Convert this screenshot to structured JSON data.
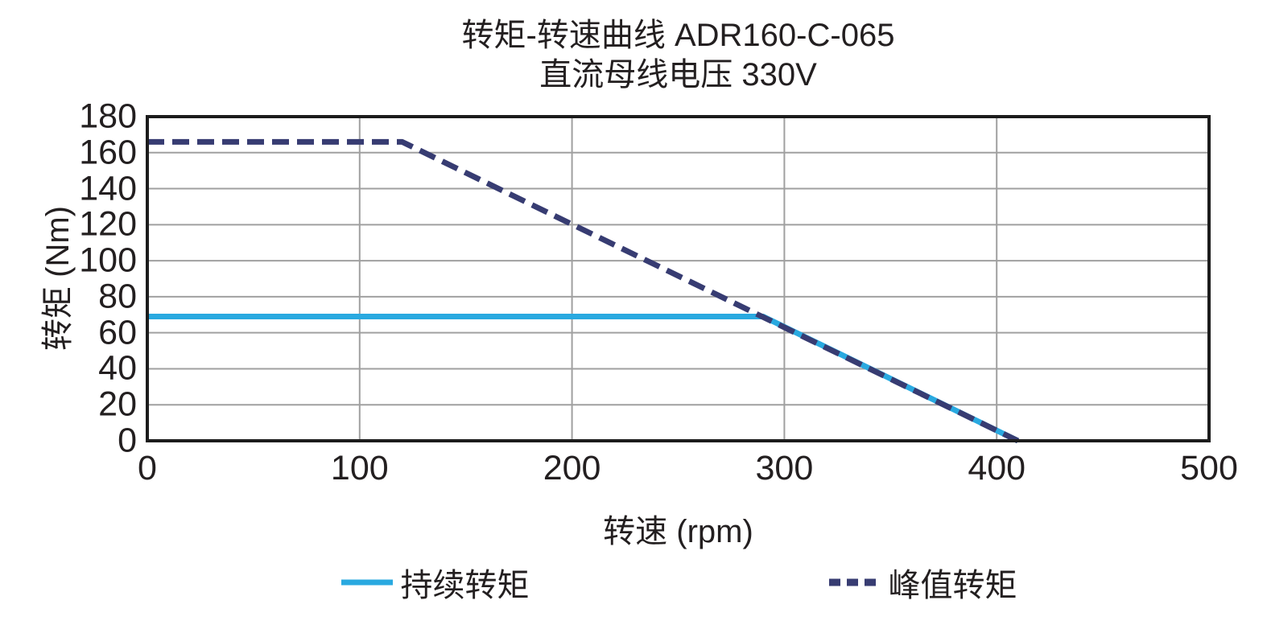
{
  "chart_data": {
    "type": "line",
    "title": "转矩-转速曲线 ADR160-C-065",
    "subtitle": "直流母线电压 330V",
    "xlabel": "转速 (rpm)",
    "ylabel": "转矩 (Nm)",
    "xlim": [
      0,
      500
    ],
    "ylim": [
      0,
      180
    ],
    "x_ticks": [
      0,
      100,
      200,
      300,
      400,
      500
    ],
    "y_ticks": [
      0,
      20,
      40,
      60,
      80,
      100,
      120,
      140,
      160,
      180
    ],
    "grid": true,
    "legend_position": "bottom",
    "series": [
      {
        "name": "持续转矩",
        "style": "solid",
        "color": "#29a9e0",
        "points": [
          [
            0,
            69
          ],
          [
            290,
            69
          ],
          [
            410,
            0
          ]
        ]
      },
      {
        "name": "峰值转矩",
        "style": "dashed",
        "color": "#373c72",
        "points": [
          [
            0,
            166
          ],
          [
            120,
            166
          ],
          [
            410,
            0
          ]
        ]
      }
    ],
    "colors": {
      "text": "#231f20",
      "gridline": "#a0a0a0",
      "plot_border": "#1c1c1c",
      "background": "#ffffff"
    }
  }
}
